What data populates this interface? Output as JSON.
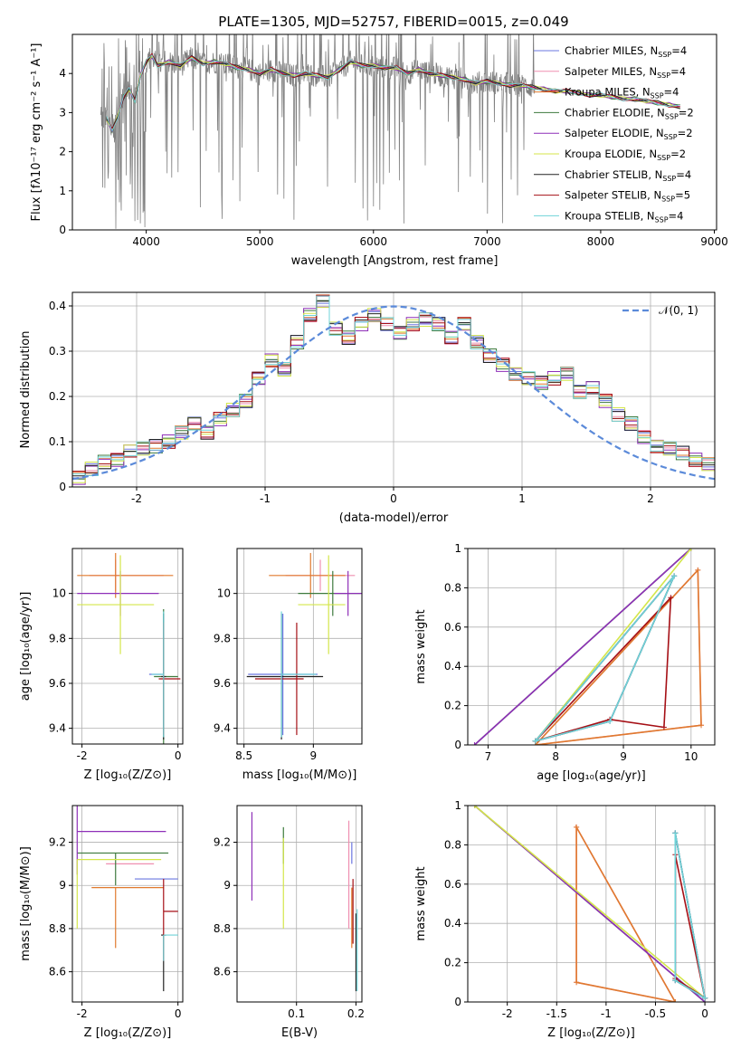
{
  "figure": {
    "title": "PLATE=1305, MJD=52757, FIBERID=0015, z=0.049"
  },
  "series_colors": [
    "#6b77e0",
    "#ef8fb0",
    "#e07a2e",
    "#3d7a3d",
    "#8e2fb8",
    "#d4e64a",
    "#222222",
    "#a50f15",
    "#6fd3d8"
  ],
  "chart_data": [
    {
      "id": "spectrum",
      "type": "line",
      "title": "PLATE=1305, MJD=52757, FIBERID=0015, z=0.049",
      "xlabel": "wavelength [Angstrom, rest frame]",
      "ylabel": "Flux [fλ10⁻¹⁷ erg cm⁻² s⁻¹ A⁻¹]",
      "xlim": [
        3350,
        9020
      ],
      "ylim": [
        0,
        5
      ],
      "xticks": [
        4000,
        5000,
        6000,
        7000,
        8000,
        9000
      ],
      "yticks": [
        0,
        1,
        2,
        3,
        4
      ],
      "grid": false,
      "legend_position": "right",
      "legend": [
        {
          "label": "Chabrier MILES, N",
          "sub": "SSP",
          "tail": "=4"
        },
        {
          "label": "Salpeter MILES, N",
          "sub": "SSP",
          "tail": "=4"
        },
        {
          "label": "Kroupa MILES, N",
          "sub": "SSP",
          "tail": "=4"
        },
        {
          "label": "Chabrier ELODIE, N",
          "sub": "SSP",
          "tail": "=2"
        },
        {
          "label": "Salpeter ELODIE, N",
          "sub": "SSP",
          "tail": "=2"
        },
        {
          "label": "Kroupa ELODIE, N",
          "sub": "SSP",
          "tail": "=2"
        },
        {
          "label": "Chabrier STELIB, N",
          "sub": "SSP",
          "tail": "=4"
        },
        {
          "label": "Salpeter STELIB, N",
          "sub": "SSP",
          "tail": "=5"
        },
        {
          "label": "Kroupa STELIB, N",
          "sub": "SSP",
          "tail": "=4"
        }
      ],
      "data_color": "#808080",
      "data_range": [
        3600,
        7420
      ],
      "model_x": [
        3650,
        3700,
        3750,
        3800,
        3850,
        3900,
        3950,
        4000,
        4050,
        4100,
        4200,
        4300,
        4400,
        4500,
        4600,
        4700,
        4800,
        4900,
        5000,
        5100,
        5200,
        5300,
        5400,
        5500,
        5600,
        5700,
        5800,
        5900,
        6000,
        6100,
        6200,
        6300,
        6400,
        6500,
        6600,
        6700,
        6800,
        6900,
        7000,
        7100,
        7200,
        7300,
        7400,
        7500,
        7600,
        7700,
        7800,
        7900,
        8000,
        8100,
        8200,
        8300,
        8400,
        8500,
        8600,
        8700
      ],
      "model_y": [
        2.85,
        2.55,
        2.9,
        3.4,
        3.6,
        3.3,
        3.95,
        4.3,
        4.45,
        4.2,
        4.3,
        4.2,
        4.4,
        4.25,
        4.3,
        4.25,
        4.15,
        4.1,
        4.0,
        4.1,
        4.0,
        3.95,
        4.0,
        3.95,
        3.9,
        4.1,
        4.3,
        4.2,
        4.2,
        4.15,
        4.15,
        4.0,
        4.1,
        4.0,
        3.95,
        3.9,
        3.85,
        3.75,
        3.8,
        3.75,
        3.7,
        3.7,
        3.65,
        3.6,
        3.55,
        3.55,
        3.5,
        3.45,
        3.45,
        3.4,
        3.35,
        3.35,
        3.3,
        3.25,
        3.2,
        3.15
      ]
    },
    {
      "id": "residuals",
      "type": "line",
      "xlabel": "(data-model)/error",
      "ylabel": "Normed distribution",
      "xlim": [
        -2.5,
        2.5
      ],
      "ylim": [
        0,
        0.43
      ],
      "xticks": [
        -2,
        -1,
        0,
        1,
        2
      ],
      "yticks": [
        0.0,
        0.1,
        0.2,
        0.3,
        0.4
      ],
      "grid": true,
      "legend_position": "top-right",
      "reference_curve": {
        "label": "𝒩(0, 1)",
        "color": "#5b8ad9",
        "mean": 0,
        "sigma": 1
      },
      "bin_edges": [
        -2.5,
        -2.4,
        -2.3,
        -2.2,
        -2.1,
        -2.0,
        -1.9,
        -1.8,
        -1.7,
        -1.6,
        -1.5,
        -1.4,
        -1.3,
        -1.2,
        -1.1,
        -1.0,
        -0.9,
        -0.8,
        -0.7,
        -0.6,
        -0.5,
        -0.4,
        -0.3,
        -0.2,
        -0.1,
        0.0,
        0.1,
        0.2,
        0.3,
        0.4,
        0.5,
        0.6,
        0.7,
        0.8,
        0.9,
        1.0,
        1.1,
        1.2,
        1.3,
        1.4,
        1.5,
        1.6,
        1.7,
        1.8,
        1.9,
        2.0,
        2.1,
        2.2,
        2.3,
        2.4,
        2.5
      ],
      "hist_values": [
        0.02,
        0.04,
        0.055,
        0.06,
        0.08,
        0.085,
        0.09,
        0.1,
        0.12,
        0.14,
        0.12,
        0.15,
        0.17,
        0.19,
        0.24,
        0.28,
        0.26,
        0.32,
        0.38,
        0.41,
        0.35,
        0.33,
        0.36,
        0.38,
        0.36,
        0.34,
        0.36,
        0.37,
        0.36,
        0.33,
        0.36,
        0.32,
        0.29,
        0.27,
        0.25,
        0.24,
        0.23,
        0.24,
        0.25,
        0.21,
        0.22,
        0.19,
        0.16,
        0.14,
        0.11,
        0.09,
        0.085,
        0.075,
        0.06,
        0.05
      ]
    },
    {
      "id": "age-vs-Z",
      "type": "scatter",
      "xlabel": "Z [log₁₀(Z/Z⊙)]",
      "ylabel": "age  [log₁₀(age/yr)]",
      "xlim": [
        -2.2,
        0.1
      ],
      "ylim": [
        9.33,
        10.2
      ],
      "xticks": [
        -2,
        0
      ],
      "yticks": [
        9.4,
        9.6,
        9.8,
        10.0
      ],
      "grid": true,
      "points": [
        {
          "x": -0.3,
          "y": 9.64,
          "xerr": [
            0.3,
            0.0
          ],
          "yerr": [
            0.27,
            0.27
          ]
        },
        {
          "x": -1.3,
          "y": 10.08,
          "xerr": [
            0.55,
            1.0
          ],
          "yerr": [
            0.07,
            0.07
          ]
        },
        {
          "x": -1.3,
          "y": 10.08,
          "xerr": [
            0.8,
            1.2
          ],
          "yerr": [
            0.1,
            0.1
          ]
        },
        {
          "x": -0.3,
          "y": 9.63,
          "xerr": [
            0.2,
            0.3
          ],
          "yerr": [
            0.3,
            0.3
          ]
        },
        {
          "x": -1.2,
          "y": 10.0,
          "xerr": [
            0.9,
            0.8
          ],
          "yerr": [
            0.1,
            0.1
          ]
        },
        {
          "x": -1.2,
          "y": 9.95,
          "xerr": [
            0.9,
            0.7
          ],
          "yerr": [
            0.22,
            0.22
          ]
        },
        {
          "x": -0.3,
          "y": 9.63,
          "xerr": [
            0.05,
            0.05
          ],
          "yerr": [
            0.28,
            0.28
          ]
        },
        {
          "x": -0.3,
          "y": 9.62,
          "xerr": [
            0.1,
            0.35
          ],
          "yerr": [
            0.25,
            0.25
          ]
        },
        {
          "x": -0.3,
          "y": 9.64,
          "xerr": [
            0.25,
            0.0
          ],
          "yerr": [
            0.28,
            0.28
          ]
        }
      ]
    },
    {
      "id": "age-vs-mass",
      "type": "scatter",
      "xlabel": "mass [log₁₀(M/M⊙)]",
      "ylabel": "",
      "xlim": [
        8.45,
        9.35
      ],
      "ylim": [
        9.33,
        10.2
      ],
      "xticks": [
        8.5,
        9.0
      ],
      "yticks": [
        9.4,
        9.6,
        9.8,
        10.0
      ],
      "grid": true,
      "points": [
        {
          "x": 8.78,
          "y": 9.64,
          "xerr": [
            0.25,
            0.25
          ],
          "yerr": [
            0.27,
            0.27
          ]
        },
        {
          "x": 9.05,
          "y": 10.08,
          "xerr": [
            0.25,
            0.25
          ],
          "yerr": [
            0.07,
            0.07
          ]
        },
        {
          "x": 8.98,
          "y": 10.08,
          "xerr": [
            0.3,
            0.25
          ],
          "yerr": [
            0.1,
            0.1
          ]
        },
        {
          "x": 9.14,
          "y": 10.0,
          "xerr": [
            0.25,
            0.2
          ],
          "yerr": [
            0.1,
            0.1
          ]
        },
        {
          "x": 9.25,
          "y": 10.0,
          "xerr": [
            0.1,
            0.1
          ],
          "yerr": [
            0.1,
            0.1
          ]
        },
        {
          "x": 9.11,
          "y": 9.95,
          "xerr": [
            0.22,
            0.12
          ],
          "yerr": [
            0.22,
            0.22
          ]
        },
        {
          "x": 8.77,
          "y": 9.63,
          "xerr": [
            0.25,
            0.3
          ],
          "yerr": [
            0.28,
            0.28
          ]
        },
        {
          "x": 8.88,
          "y": 9.62,
          "xerr": [
            0.3,
            0.05
          ],
          "yerr": [
            0.25,
            0.25
          ]
        },
        {
          "x": 8.77,
          "y": 9.64,
          "xerr": [
            0.0,
            0.25
          ],
          "yerr": [
            0.28,
            0.28
          ]
        }
      ]
    },
    {
      "id": "mass-weight-vs-age",
      "type": "line",
      "xlabel": "age  [log₁₀(age/yr)]",
      "ylabel": "mass weight",
      "xlim": [
        6.7,
        10.35
      ],
      "ylim": [
        0,
        1.0
      ],
      "xticks": [
        7,
        8,
        9,
        10
      ],
      "yticks": [
        0.0,
        0.2,
        0.4,
        0.6,
        0.8,
        1.0
      ],
      "grid": true,
      "series": [
        {
          "x": [
            7.7,
            8.8,
            9.75,
            7.7
          ],
          "y": [
            0.02,
            0.12,
            0.86,
            0.02
          ]
        },
        {
          "x": [
            7.7,
            10.1,
            10.15,
            7.7
          ],
          "y": [
            0.0,
            0.89,
            0.1,
            0.0
          ]
        },
        {
          "x": [
            7.7,
            10.1,
            10.15,
            7.7
          ],
          "y": [
            0.0,
            0.89,
            0.1,
            0.0
          ]
        },
        {
          "x": [
            6.8,
            10.0
          ],
          "y": [
            0.0,
            1.0
          ]
        },
        {
          "x": [
            6.8,
            10.0
          ],
          "y": [
            0.0,
            1.0
          ]
        },
        {
          "x": [
            7.7,
            10.0
          ],
          "y": [
            0.02,
            1.0
          ]
        },
        {
          "x": [
            7.7,
            8.8,
            9.75,
            7.7
          ],
          "y": [
            0.02,
            0.12,
            0.86,
            0.02
          ]
        },
        {
          "x": [
            7.7,
            8.8,
            9.6,
            9.7,
            7.7
          ],
          "y": [
            0.02,
            0.13,
            0.09,
            0.75,
            0.02
          ]
        },
        {
          "x": [
            7.7,
            8.8,
            9.75,
            7.7
          ],
          "y": [
            0.02,
            0.12,
            0.86,
            0.02
          ]
        }
      ]
    },
    {
      "id": "mass-vs-Z",
      "type": "scatter",
      "xlabel": "Z [log₁₀(Z/Z⊙)]",
      "ylabel": "mass [log₁₀(M/M⊙)]",
      "xlim": [
        -2.2,
        0.1
      ],
      "ylim": [
        8.46,
        9.37
      ],
      "xticks": [
        -2,
        0
      ],
      "yticks": [
        8.6,
        8.8,
        9.0,
        9.2
      ],
      "grid": true,
      "points": [
        {
          "x": -0.3,
          "y": 9.03,
          "xerr": [
            0.6,
            0.3
          ],
          "yerr": [
            0.0,
            0.0
          ]
        },
        {
          "x": -1.1,
          "y": 9.1,
          "xerr": [
            0.4,
            0.6
          ],
          "yerr": [
            0.0,
            0.0
          ]
        },
        {
          "x": -1.3,
          "y": 8.99,
          "xerr": [
            0.5,
            1.0
          ],
          "yerr": [
            0.28,
            0.0
          ]
        },
        {
          "x": -1.3,
          "y": 9.15,
          "xerr": [
            0.8,
            1.1
          ],
          "yerr": [
            0.15,
            0.0
          ]
        },
        {
          "x": -2.1,
          "y": 9.25,
          "xerr": [
            0.0,
            1.85
          ],
          "yerr": [
            0.2,
            0.2
          ]
        },
        {
          "x": -2.1,
          "y": 9.12,
          "xerr": [
            0.0,
            1.75
          ],
          "yerr": [
            0.32,
            0.0
          ]
        },
        {
          "x": -0.3,
          "y": 8.77,
          "xerr": [
            0.05,
            0.05
          ],
          "yerr": [
            0.26,
            0.0
          ]
        },
        {
          "x": -0.3,
          "y": 8.88,
          "xerr": [
            0.0,
            0.3
          ],
          "yerr": [
            0.23,
            0.15
          ]
        },
        {
          "x": -0.3,
          "y": 8.77,
          "xerr": [
            0.0,
            0.3
          ],
          "yerr": [
            0.12,
            0.0
          ]
        }
      ]
    },
    {
      "id": "mass-vs-EBV",
      "type": "scatter",
      "xlabel": "E(B-V)",
      "ylabel": "",
      "xlim": [
        0.0,
        0.21
      ],
      "ylim": [
        8.46,
        9.37
      ],
      "xticks": [
        0.1,
        0.2
      ],
      "yticks": [
        8.6,
        8.8,
        9.0,
        9.2
      ],
      "grid": true,
      "points": [
        {
          "x": 0.193,
          "y": 9.1,
          "xerr": [
            0.0,
            0.0
          ],
          "yerr": [
            0.0,
            0.1
          ]
        },
        {
          "x": 0.188,
          "y": 9.1,
          "xerr": [
            0.0,
            0.0
          ],
          "yerr": [
            0.3,
            0.2
          ]
        },
        {
          "x": 0.193,
          "y": 8.99,
          "xerr": [
            0.0,
            0.0
          ],
          "yerr": [
            0.28,
            0.0
          ]
        },
        {
          "x": 0.078,
          "y": 9.15,
          "xerr": [
            0.0,
            0.0
          ],
          "yerr": [
            0.05,
            0.12
          ]
        },
        {
          "x": 0.025,
          "y": 9.14,
          "xerr": [
            0.0,
            0.0
          ],
          "yerr": [
            0.21,
            0.2
          ]
        },
        {
          "x": 0.078,
          "y": 9.1,
          "xerr": [
            0.0,
            0.0
          ],
          "yerr": [
            0.3,
            0.12
          ]
        },
        {
          "x": 0.2,
          "y": 8.77,
          "xerr": [
            0.0,
            0.0
          ],
          "yerr": [
            0.26,
            0.1
          ]
        },
        {
          "x": 0.195,
          "y": 8.88,
          "xerr": [
            0.0,
            0.0
          ],
          "yerr": [
            0.15,
            0.15
          ]
        },
        {
          "x": 0.202,
          "y": 8.77,
          "xerr": [
            0.0,
            0.0
          ],
          "yerr": [
            0.26,
            0.12
          ]
        }
      ]
    },
    {
      "id": "mass-weight-vs-Z",
      "type": "line",
      "xlabel": "Z [log₁₀(Z/Z⊙)]",
      "ylabel": "mass weight",
      "xlim": [
        -2.4,
        0.1
      ],
      "ylim": [
        0,
        1.0
      ],
      "xticks": [
        -2.0,
        -1.5,
        -1.0,
        -0.5,
        0.0
      ],
      "yticks": [
        0.0,
        0.2,
        0.4,
        0.6,
        0.8,
        1.0
      ],
      "grid": true,
      "series": [
        {
          "x": [
            0.0,
            -0.3,
            -0.3,
            0.0
          ],
          "y": [
            0.02,
            0.11,
            0.86,
            0.02
          ]
        },
        {
          "x": [
            -0.3,
            -1.3,
            -1.3,
            -0.3
          ],
          "y": [
            0.0,
            0.1,
            0.89,
            0.0
          ]
        },
        {
          "x": [
            -0.3,
            -1.3,
            -1.3,
            -0.3
          ],
          "y": [
            0.0,
            0.1,
            0.89,
            0.0
          ]
        },
        {
          "x": [
            -2.33,
            0.0
          ],
          "y": [
            1.0,
            0.0
          ]
        },
        {
          "x": [
            -2.33,
            0.0
          ],
          "y": [
            1.0,
            0.0
          ]
        },
        {
          "x": [
            -2.33,
            0.0
          ],
          "y": [
            1.0,
            0.02
          ]
        },
        {
          "x": [
            0.0,
            -0.3,
            -0.3,
            0.0
          ],
          "y": [
            0.02,
            0.11,
            0.86,
            0.02
          ]
        },
        {
          "x": [
            0.0,
            -0.3,
            -0.3,
            0.0
          ],
          "y": [
            0.02,
            0.12,
            0.75,
            0.02
          ]
        },
        {
          "x": [
            0.0,
            -0.3,
            -0.3,
            0.0
          ],
          "y": [
            0.02,
            0.11,
            0.86,
            0.02
          ]
        }
      ]
    }
  ]
}
